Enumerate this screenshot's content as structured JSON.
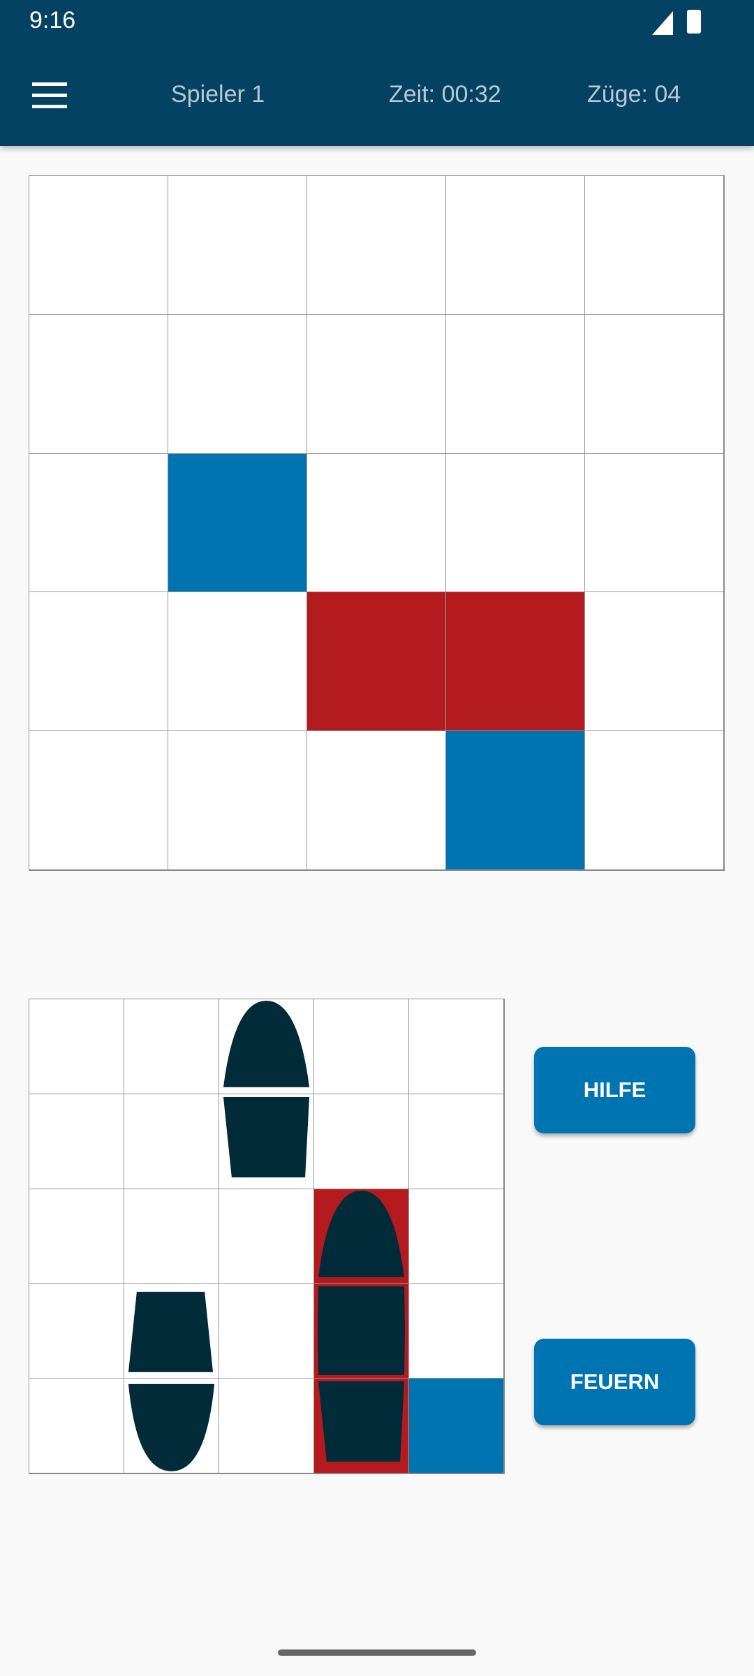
{
  "status_bar": {
    "time": "9:16",
    "icons": [
      "signal-icon",
      "battery-icon"
    ]
  },
  "header": {
    "player": "Spieler 1",
    "time": "Zeit: 00:32",
    "moves": "Züge: 04",
    "menu_icon": "hamburger-menu-icon"
  },
  "colors": {
    "appbar": "#034263",
    "miss": "#0073b1",
    "hit": "#b31b1e",
    "ship": "#022b3a",
    "button": "#0073b1"
  },
  "opponent_grid": [
    [
      "empty",
      "empty",
      "empty",
      "empty",
      "empty"
    ],
    [
      "empty",
      "empty",
      "empty",
      "empty",
      "empty"
    ],
    [
      "empty",
      "miss",
      "empty",
      "empty",
      "empty"
    ],
    [
      "empty",
      "empty",
      "hit",
      "hit",
      "empty"
    ],
    [
      "empty",
      "empty",
      "empty",
      "miss",
      "empty"
    ]
  ],
  "own_grid": {
    "states": [
      [
        "empty",
        "empty",
        "empty",
        "empty",
        "empty"
      ],
      [
        "empty",
        "empty",
        "empty",
        "empty",
        "empty"
      ],
      [
        "empty",
        "empty",
        "empty",
        "hit",
        "empty"
      ],
      [
        "empty",
        "empty",
        "empty",
        "hit",
        "empty"
      ],
      [
        "empty",
        "empty",
        "empty",
        "hit",
        "miss"
      ]
    ],
    "ships": [
      [
        "",
        "",
        "bow-up",
        "",
        ""
      ],
      [
        "",
        "",
        "stern-below",
        "",
        ""
      ],
      [
        "",
        "",
        "",
        "bow-up",
        ""
      ],
      [
        "",
        "stern-above",
        "",
        "middle",
        ""
      ],
      [
        "",
        "bow-down",
        "",
        "stern-below",
        ""
      ]
    ]
  },
  "buttons": {
    "help": "HILFE",
    "fire": "FEUERN"
  }
}
